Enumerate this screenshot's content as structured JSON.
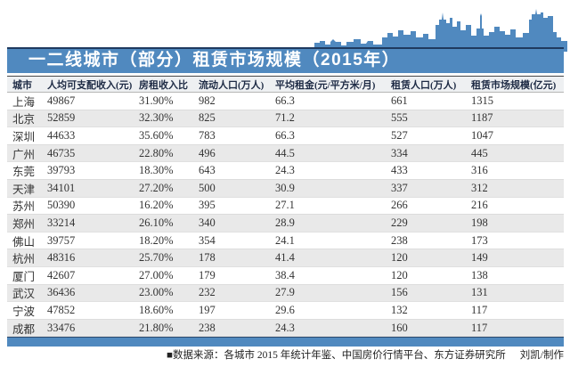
{
  "title": "一二线城市（部分）租赁市场规模（2015年）",
  "colors": {
    "accent_blue": "#5089BF",
    "navy_border": "#1F3A5F",
    "header_row_bg": "#eef0f2",
    "stripe_row_bg": "#e9e9e9",
    "title_text": "#ffffff",
    "body_text": "#333333"
  },
  "table": {
    "columns": [
      "城市",
      "人均可支配收入(元)",
      "房租收入比",
      "流动人口(万人)",
      "平均租金(元/平方米/月)",
      "租赁人口(万人)",
      "租赁市场规模(亿元)"
    ],
    "rows": [
      [
        "上海",
        "49867",
        "31.90%",
        "982",
        "66.3",
        "661",
        "1315"
      ],
      [
        "北京",
        "52859",
        "32.30%",
        "825",
        "71.2",
        "555",
        "1187"
      ],
      [
        "深圳",
        "44633",
        "35.60%",
        "783",
        "66.3",
        "527",
        "1047"
      ],
      [
        "广州",
        "46735",
        "22.80%",
        "496",
        "44.5",
        "334",
        "445"
      ],
      [
        "东莞",
        "39793",
        "18.30%",
        "643",
        "24.3",
        "433",
        "316"
      ],
      [
        "天津",
        "34101",
        "27.20%",
        "500",
        "30.9",
        "337",
        "312"
      ],
      [
        "苏州",
        "50390",
        "16.20%",
        "395",
        "27.1",
        "266",
        "216"
      ],
      [
        "郑州",
        "33214",
        "26.10%",
        "340",
        "28.9",
        "229",
        "198"
      ],
      [
        "佛山",
        "39757",
        "18.20%",
        "354",
        "24.1",
        "238",
        "173"
      ],
      [
        "杭州",
        "48316",
        "25.70%",
        "178",
        "41.4",
        "120",
        "149"
      ],
      [
        "厦门",
        "42607",
        "27.00%",
        "179",
        "38.4",
        "120",
        "138"
      ],
      [
        "武汉",
        "36436",
        "23.00%",
        "232",
        "27.9",
        "156",
        "131"
      ],
      [
        "宁波",
        "47852",
        "18.60%",
        "197",
        "29.6",
        "132",
        "117"
      ],
      [
        "成都",
        "33476",
        "21.80%",
        "238",
        "24.3",
        "160",
        "117"
      ]
    ]
  },
  "footer": {
    "source": "■数据来源：各城市 2015 年统计年鉴、中国房价行情平台、东方证券研究所",
    "credit": "刘凯/制作"
  },
  "chart_data": {
    "type": "table",
    "title": "一二线城市（部分）租赁市场规模（2015年）",
    "columns": [
      "城市",
      "人均可支配收入(元)",
      "房租收入比",
      "流动人口(万人)",
      "平均租金(元/平方米/月)",
      "租赁人口(万人)",
      "租赁市场规模(亿元)"
    ],
    "rows": [
      [
        "上海",
        49867,
        "31.90%",
        982,
        66.3,
        661,
        1315
      ],
      [
        "北京",
        52859,
        "32.30%",
        825,
        71.2,
        555,
        1187
      ],
      [
        "深圳",
        44633,
        "35.60%",
        783,
        66.3,
        527,
        1047
      ],
      [
        "广州",
        46735,
        "22.80%",
        496,
        44.5,
        334,
        445
      ],
      [
        "东莞",
        39793,
        "18.30%",
        643,
        24.3,
        433,
        316
      ],
      [
        "天津",
        34101,
        "27.20%",
        500,
        30.9,
        337,
        312
      ],
      [
        "苏州",
        50390,
        "16.20%",
        395,
        27.1,
        266,
        216
      ],
      [
        "郑州",
        33214,
        "26.10%",
        340,
        28.9,
        229,
        198
      ],
      [
        "佛山",
        39757,
        "18.20%",
        354,
        24.1,
        238,
        173
      ],
      [
        "杭州",
        48316,
        "25.70%",
        178,
        41.4,
        120,
        149
      ],
      [
        "厦门",
        42607,
        "27.00%",
        179,
        38.4,
        120,
        138
      ],
      [
        "武汉",
        36436,
        "23.00%",
        232,
        27.9,
        156,
        131
      ],
      [
        "宁波",
        47852,
        "18.60%",
        197,
        29.6,
        132,
        117
      ],
      [
        "成都",
        33476,
        "21.80%",
        238,
        24.3,
        160,
        117
      ]
    ],
    "layout": {
      "striped_rows": "even rows shaded",
      "grid": "horizontal separators only",
      "legend": "none"
    }
  }
}
